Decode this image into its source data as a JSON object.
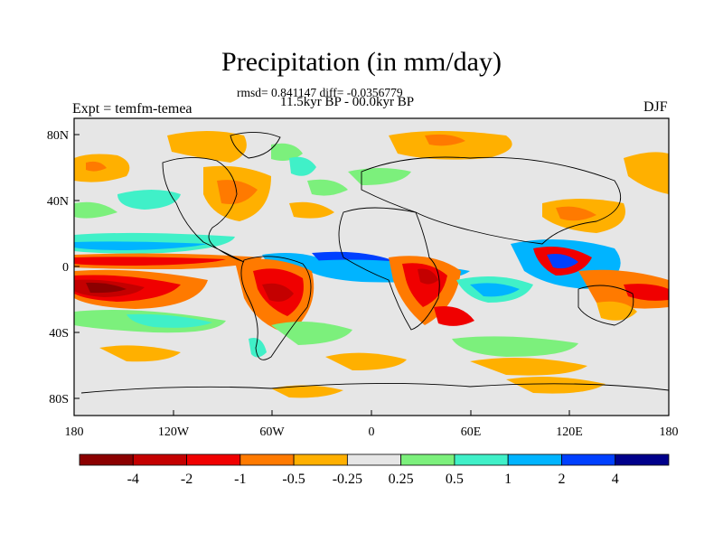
{
  "title": "Precipitation (in mm/day)",
  "stats": {
    "line1": "rmsd= 0.841147 diff= -0.0356779",
    "line2": "11.5kyr BP - 00.0kyr BP"
  },
  "experiment_label": "Expt = temfm-temea",
  "season": "DJF",
  "map": {
    "lat_labels": [
      "80N",
      "40N",
      "0",
      "40S",
      "80S"
    ],
    "lon_labels": [
      "180",
      "120W",
      "60W",
      "0",
      "60E",
      "120E",
      "180"
    ],
    "background_color": "#e6e6e6"
  },
  "colorbar": {
    "colors": [
      "#8b0000",
      "#c40000",
      "#f00000",
      "#ff7a00",
      "#ffb000",
      "#e6e6e6",
      "#7cf07c",
      "#40f0c8",
      "#00b4ff",
      "#0040ff",
      "#00008b"
    ],
    "labels": [
      "-4",
      "-2",
      "-1",
      "-0.5",
      "-0.25",
      "0.25",
      "0.5",
      "1",
      "2",
      "4"
    ]
  }
}
